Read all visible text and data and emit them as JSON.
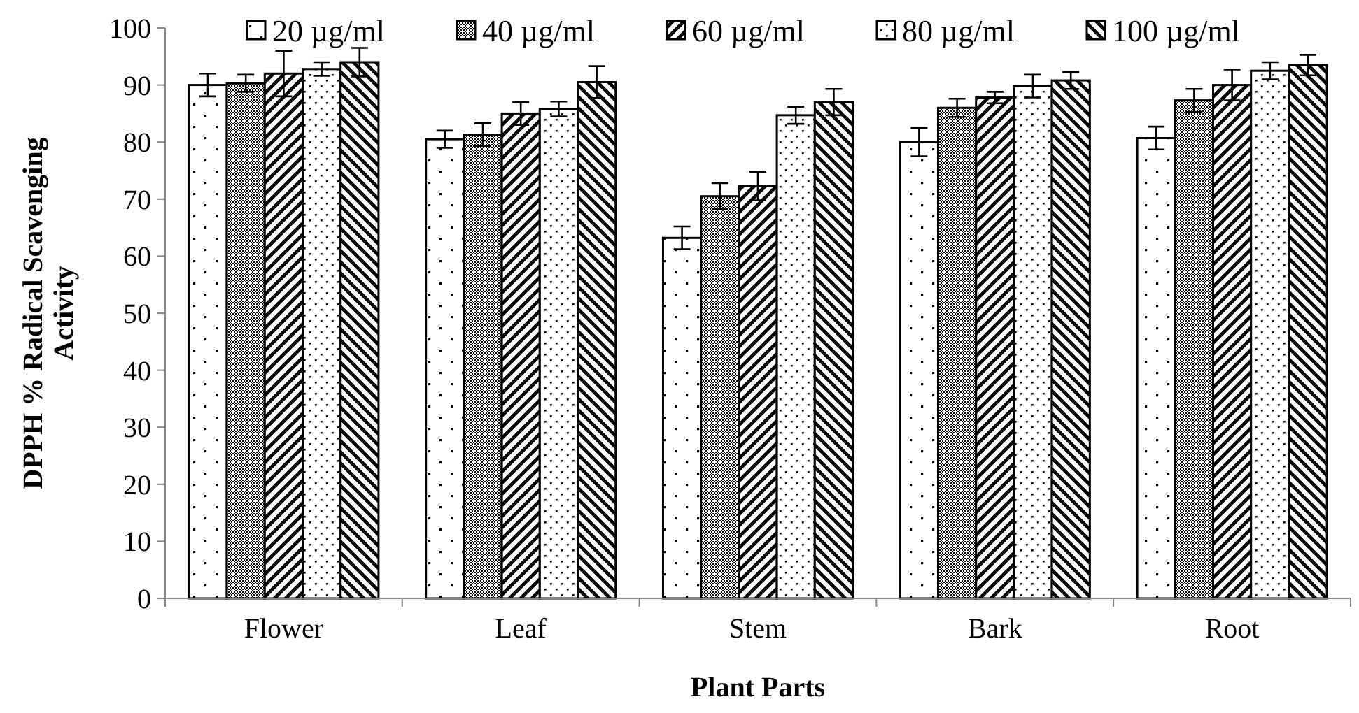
{
  "chart_data": {
    "type": "bar",
    "xlabel": "Plant Parts",
    "ylabel": "DPPH % Radical Scavenging Activity",
    "categories": [
      "Flower",
      "Leaf",
      "Stem",
      "Bark",
      "Root"
    ],
    "series": [
      {
        "name": "20 µg/ml",
        "color": "#000000",
        "values": [
          90,
          80.5,
          63.2,
          80,
          80.7
        ],
        "errors": [
          2,
          1.5,
          2,
          2.5,
          2
        ]
      },
      {
        "name": "40 µg/ml",
        "color": "#000000",
        "values": [
          90.3,
          81.3,
          70.5,
          86,
          87.3
        ],
        "errors": [
          1.5,
          2,
          2.3,
          1.6,
          2
        ]
      },
      {
        "name": "60 µg/ml",
        "color": "#000000",
        "values": [
          92,
          85,
          72.3,
          87.8,
          90
        ],
        "errors": [
          4,
          2,
          2.5,
          1,
          2.7
        ]
      },
      {
        "name": "80 µg/ml",
        "color": "#000000",
        "values": [
          92.8,
          85.8,
          84.7,
          89.8,
          92.5
        ],
        "errors": [
          1.2,
          1.3,
          1.5,
          2,
          1.5
        ]
      },
      {
        "name": "100 µg/ml",
        "color": "#000000",
        "values": [
          94,
          90.5,
          87,
          90.8,
          93.5
        ],
        "errors": [
          2.5,
          2.8,
          2.3,
          1.5,
          1.8
        ]
      }
    ],
    "ylim": [
      0,
      100
    ],
    "yticks": [
      0,
      10,
      20,
      30,
      40,
      50,
      60,
      70,
      80,
      90,
      100
    ],
    "grid": false,
    "legend": "top"
  }
}
